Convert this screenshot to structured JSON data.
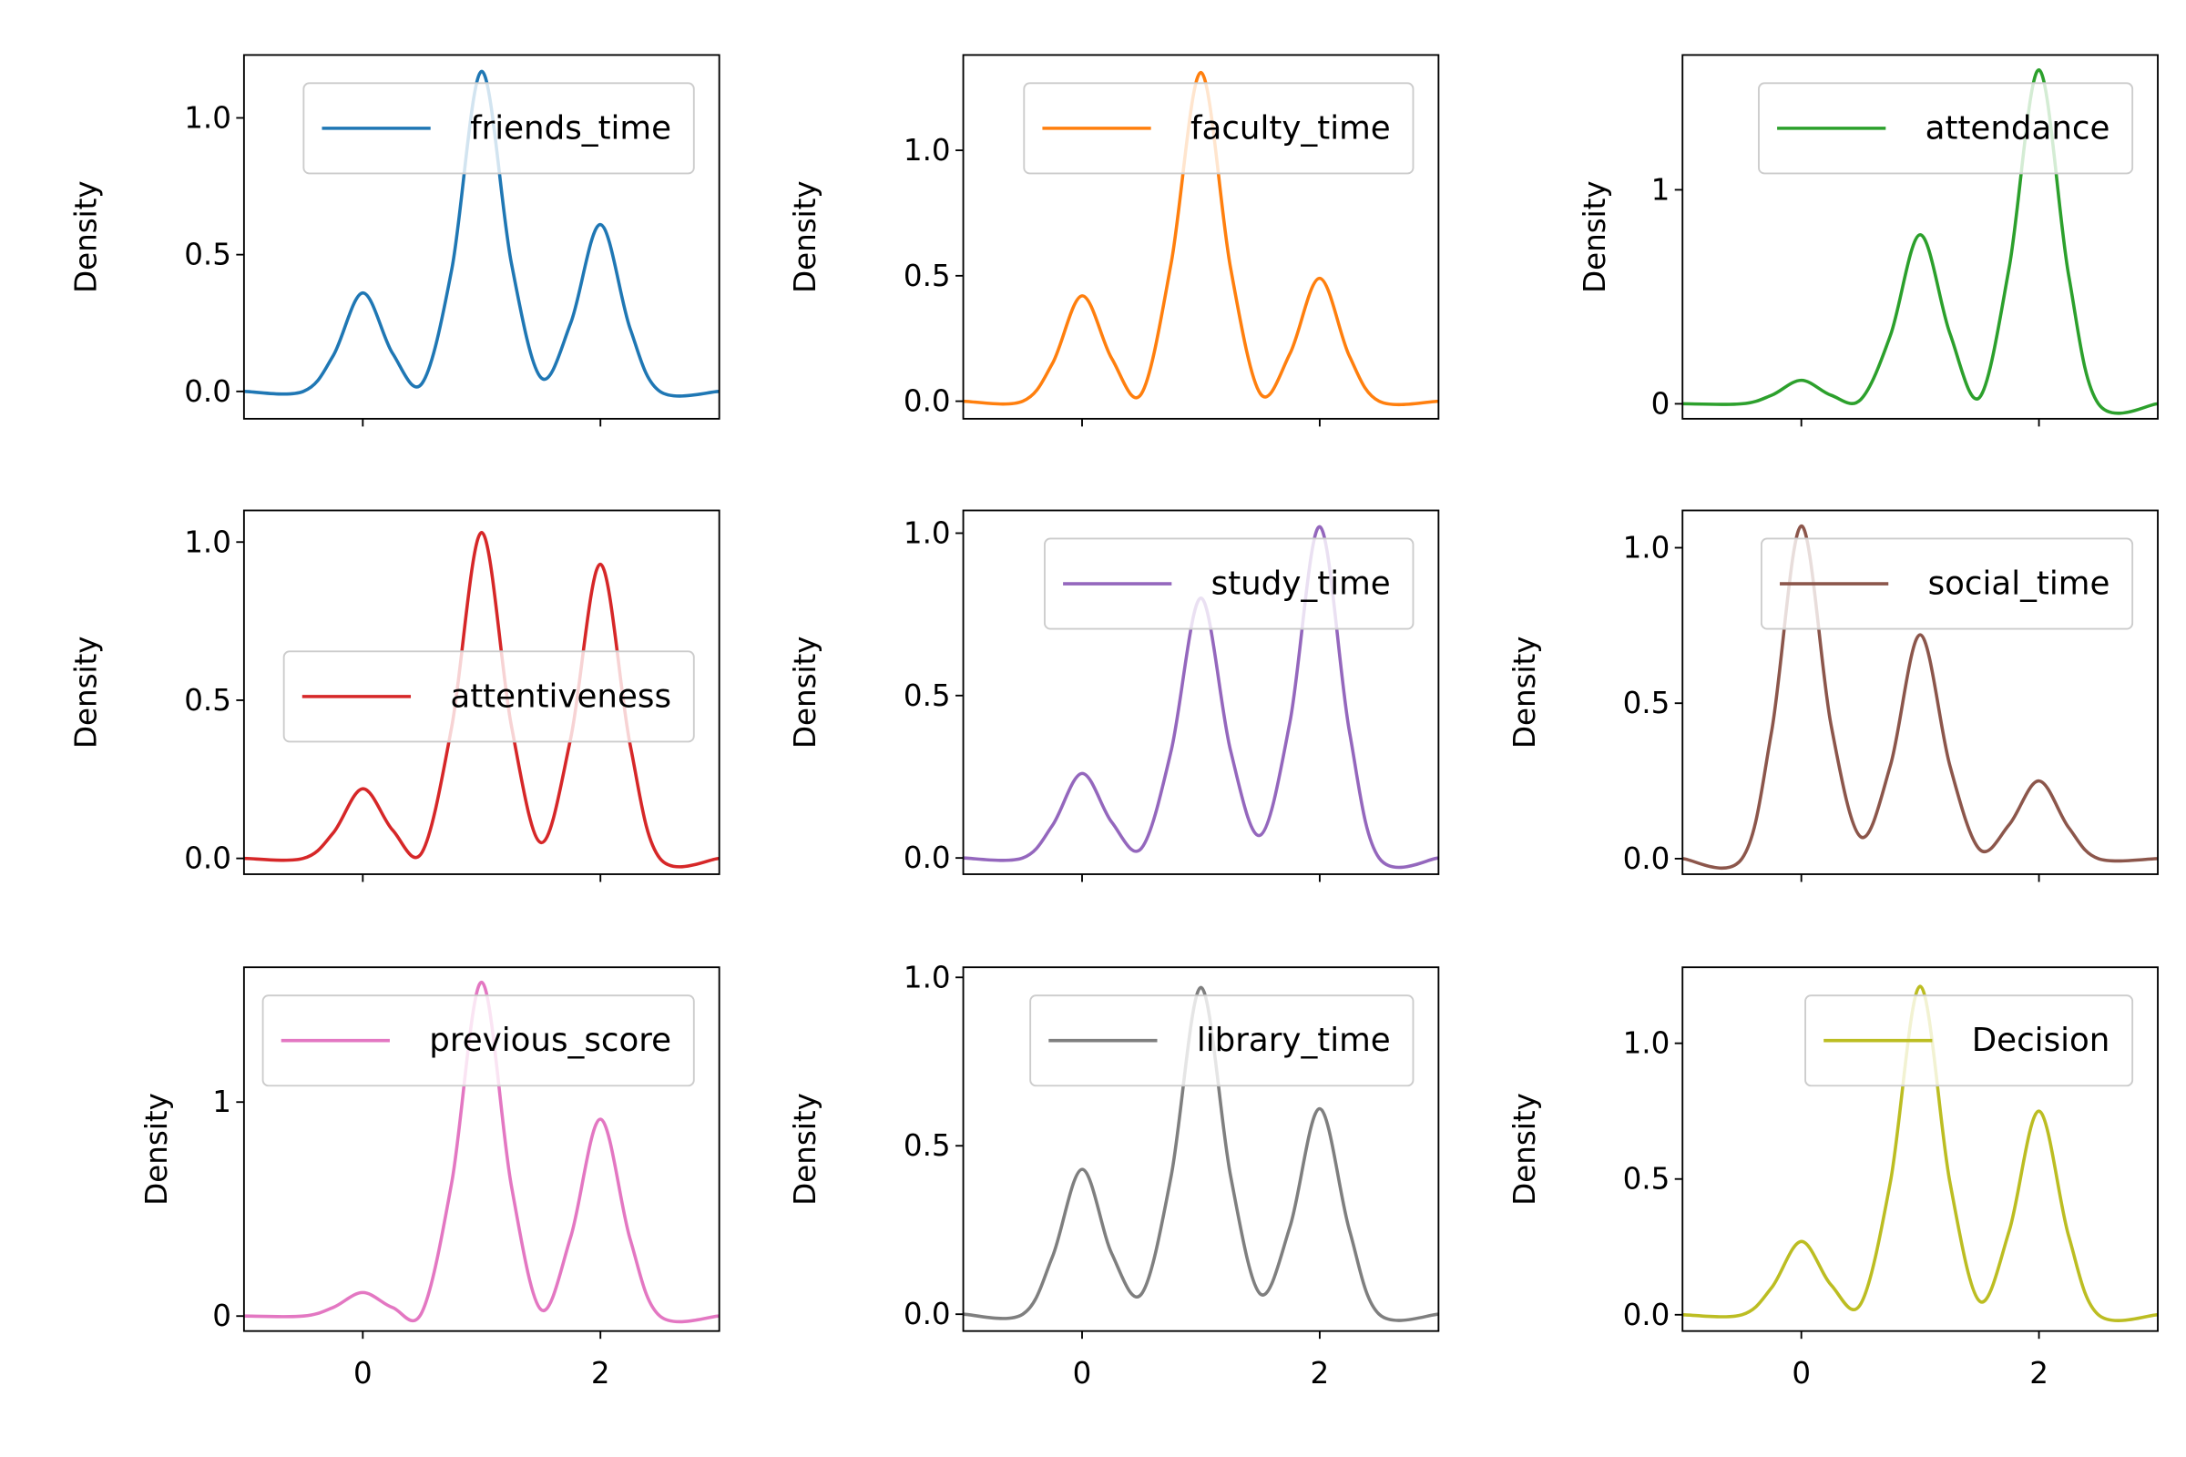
{
  "figure": {
    "background": "#ffffff"
  },
  "chart_data": [
    {
      "type": "line",
      "series_name": "friends_time",
      "color": "#1f77b4",
      "ylabel": "Density",
      "xlim": [
        -1.0,
        3.0
      ],
      "ylim": [
        -0.1,
        1.23
      ],
      "yticks": [
        0.0,
        0.5,
        1.0
      ],
      "ytick_labels": [
        "0.0",
        "0.5",
        "1.0"
      ],
      "xticks": [
        0,
        2
      ],
      "xtick_labels": [
        "",
        ""
      ],
      "legend": "upper right",
      "x": [
        -1.0,
        -0.5,
        -0.25,
        0.0,
        0.25,
        0.5,
        0.75,
        1.0,
        1.25,
        1.5,
        1.75,
        2.0,
        2.25,
        2.5,
        3.0
      ],
      "y": [
        0.0,
        0.0,
        0.13,
        0.36,
        0.14,
        0.03,
        0.45,
        1.17,
        0.47,
        0.05,
        0.25,
        0.61,
        0.23,
        0.0,
        0.0
      ]
    },
    {
      "type": "line",
      "series_name": "faculty_time",
      "color": "#ff7f0e",
      "ylabel": "Density",
      "xlim": [
        -1.0,
        3.0
      ],
      "ylim": [
        -0.07,
        1.38
      ],
      "yticks": [
        0.0,
        0.5,
        1.0
      ],
      "ytick_labels": [
        "0.0",
        "0.5",
        "1.0"
      ],
      "xticks": [
        0,
        2
      ],
      "xtick_labels": [
        "",
        ""
      ],
      "legend": "upper right",
      "x": [
        -1.0,
        -0.5,
        -0.25,
        0.0,
        0.25,
        0.5,
        0.75,
        1.0,
        1.25,
        1.5,
        1.75,
        2.0,
        2.25,
        2.5,
        3.0
      ],
      "y": [
        0.0,
        0.0,
        0.15,
        0.42,
        0.17,
        0.03,
        0.55,
        1.31,
        0.53,
        0.03,
        0.19,
        0.49,
        0.18,
        0.0,
        0.0
      ]
    },
    {
      "type": "line",
      "series_name": "attendance",
      "color": "#2ca02c",
      "ylabel": "Density",
      "xlim": [
        -1.0,
        3.0
      ],
      "ylim": [
        -0.07,
        1.63
      ],
      "yticks": [
        0,
        1
      ],
      "ytick_labels": [
        "0",
        "1"
      ],
      "xticks": [
        0,
        2
      ],
      "xtick_labels": [
        "",
        ""
      ],
      "legend": "upper right",
      "x": [
        -1.0,
        -0.5,
        -0.25,
        0.0,
        0.25,
        0.5,
        0.75,
        1.0,
        1.25,
        1.5,
        1.75,
        2.0,
        2.25,
        2.5,
        3.0
      ],
      "y": [
        0.0,
        0.0,
        0.04,
        0.11,
        0.04,
        0.02,
        0.32,
        0.79,
        0.33,
        0.03,
        0.64,
        1.56,
        0.6,
        0.0,
        0.0
      ]
    },
    {
      "type": "line",
      "series_name": "attentiveness",
      "color": "#d62728",
      "ylabel": "Density",
      "xlim": [
        -1.0,
        3.0
      ],
      "ylim": [
        -0.05,
        1.1
      ],
      "yticks": [
        0.0,
        0.5,
        1.0
      ],
      "ytick_labels": [
        "0.0",
        "0.5",
        "1.0"
      ],
      "xticks": [
        0,
        2
      ],
      "xtick_labels": [
        "",
        ""
      ],
      "legend": "center right",
      "x": [
        -1.0,
        -0.5,
        -0.25,
        0.0,
        0.25,
        0.5,
        0.75,
        1.0,
        1.25,
        1.5,
        1.75,
        2.0,
        2.25,
        2.5,
        3.0
      ],
      "y": [
        0.0,
        0.0,
        0.08,
        0.22,
        0.09,
        0.02,
        0.42,
        1.03,
        0.42,
        0.05,
        0.38,
        0.93,
        0.36,
        0.0,
        0.0
      ]
    },
    {
      "type": "line",
      "series_name": "study_time",
      "color": "#9467bd",
      "ylabel": "Density",
      "xlim": [
        -1.0,
        3.0
      ],
      "ylim": [
        -0.05,
        1.07
      ],
      "yticks": [
        0.0,
        0.5,
        1.0
      ],
      "ytick_labels": [
        "0.0",
        "0.5",
        "1.0"
      ],
      "xticks": [
        0,
        2
      ],
      "xtick_labels": [
        "",
        ""
      ],
      "legend": "upper right",
      "x": [
        -1.0,
        -0.5,
        -0.25,
        0.0,
        0.25,
        0.5,
        0.75,
        1.0,
        1.25,
        1.5,
        1.75,
        2.0,
        2.25,
        2.5,
        3.0
      ],
      "y": [
        0.0,
        0.0,
        0.1,
        0.26,
        0.11,
        0.03,
        0.33,
        0.8,
        0.33,
        0.07,
        0.42,
        1.02,
        0.39,
        0.0,
        0.0
      ]
    },
    {
      "type": "line",
      "series_name": "social_time",
      "color": "#8c564b",
      "ylabel": "Density",
      "xlim": [
        -1.0,
        3.0
      ],
      "ylim": [
        -0.05,
        1.12
      ],
      "yticks": [
        0.0,
        0.5,
        1.0
      ],
      "ytick_labels": [
        "0.0",
        "0.5",
        "1.0"
      ],
      "xticks": [
        0,
        2
      ],
      "xtick_labels": [
        "",
        ""
      ],
      "legend": "upper right",
      "x": [
        -1.0,
        -0.5,
        -0.25,
        0.0,
        0.25,
        0.5,
        0.75,
        1.0,
        1.25,
        1.5,
        1.75,
        2.0,
        2.25,
        2.5,
        3.0
      ],
      "y": [
        0.0,
        0.0,
        0.41,
        1.07,
        0.43,
        0.07,
        0.3,
        0.72,
        0.3,
        0.03,
        0.11,
        0.25,
        0.1,
        0.0,
        0.0
      ]
    },
    {
      "type": "line",
      "series_name": "previous_score",
      "color": "#e377c2",
      "ylabel": "Density",
      "xlim": [
        -1.0,
        3.0
      ],
      "ylim": [
        -0.07,
        1.63
      ],
      "yticks": [
        0,
        1
      ],
      "ytick_labels": [
        "0",
        "1"
      ],
      "xticks": [
        0,
        2
      ],
      "xtick_labels": [
        "0",
        "2"
      ],
      "legend": "upper right",
      "x": [
        -1.0,
        -0.5,
        -0.25,
        0.0,
        0.25,
        0.5,
        0.75,
        1.0,
        1.25,
        1.5,
        1.75,
        2.0,
        2.25,
        2.5,
        3.0
      ],
      "y": [
        0.0,
        0.0,
        0.04,
        0.11,
        0.04,
        0.02,
        0.63,
        1.56,
        0.61,
        0.03,
        0.37,
        0.92,
        0.36,
        0.0,
        0.0
      ]
    },
    {
      "type": "line",
      "series_name": "library_time",
      "color": "#7f7f7f",
      "ylabel": "Density",
      "xlim": [
        -1.0,
        3.0
      ],
      "ylim": [
        -0.05,
        1.03
      ],
      "yticks": [
        0.0,
        0.5,
        1.0
      ],
      "ytick_labels": [
        "0.0",
        "0.5",
        "1.0"
      ],
      "xticks": [
        0,
        2
      ],
      "xtick_labels": [
        "0",
        "2"
      ],
      "legend": "upper right",
      "x": [
        -1.0,
        -0.5,
        -0.25,
        0.0,
        0.25,
        0.5,
        0.75,
        1.0,
        1.25,
        1.5,
        1.75,
        2.0,
        2.25,
        2.5,
        3.0
      ],
      "y": [
        0.0,
        0.0,
        0.17,
        0.43,
        0.18,
        0.06,
        0.41,
        0.97,
        0.41,
        0.06,
        0.26,
        0.61,
        0.25,
        0.0,
        0.0
      ]
    },
    {
      "type": "line",
      "series_name": "Decision",
      "color": "#bcbd22",
      "ylabel": "Density",
      "xlim": [
        -1.0,
        3.0
      ],
      "ylim": [
        -0.06,
        1.28
      ],
      "yticks": [
        0.0,
        0.5,
        1.0
      ],
      "ytick_labels": [
        "0.0",
        "0.5",
        "1.0"
      ],
      "xticks": [
        0,
        2
      ],
      "xtick_labels": [
        "0",
        "2"
      ],
      "legend": "upper right",
      "x": [
        -1.0,
        -0.5,
        -0.25,
        0.0,
        0.25,
        0.5,
        0.75,
        1.0,
        1.25,
        1.5,
        1.75,
        2.0,
        2.25,
        2.5,
        3.0
      ],
      "y": [
        0.0,
        0.0,
        0.1,
        0.27,
        0.11,
        0.04,
        0.49,
        1.21,
        0.49,
        0.05,
        0.31,
        0.75,
        0.29,
        0.0,
        0.0
      ]
    }
  ]
}
